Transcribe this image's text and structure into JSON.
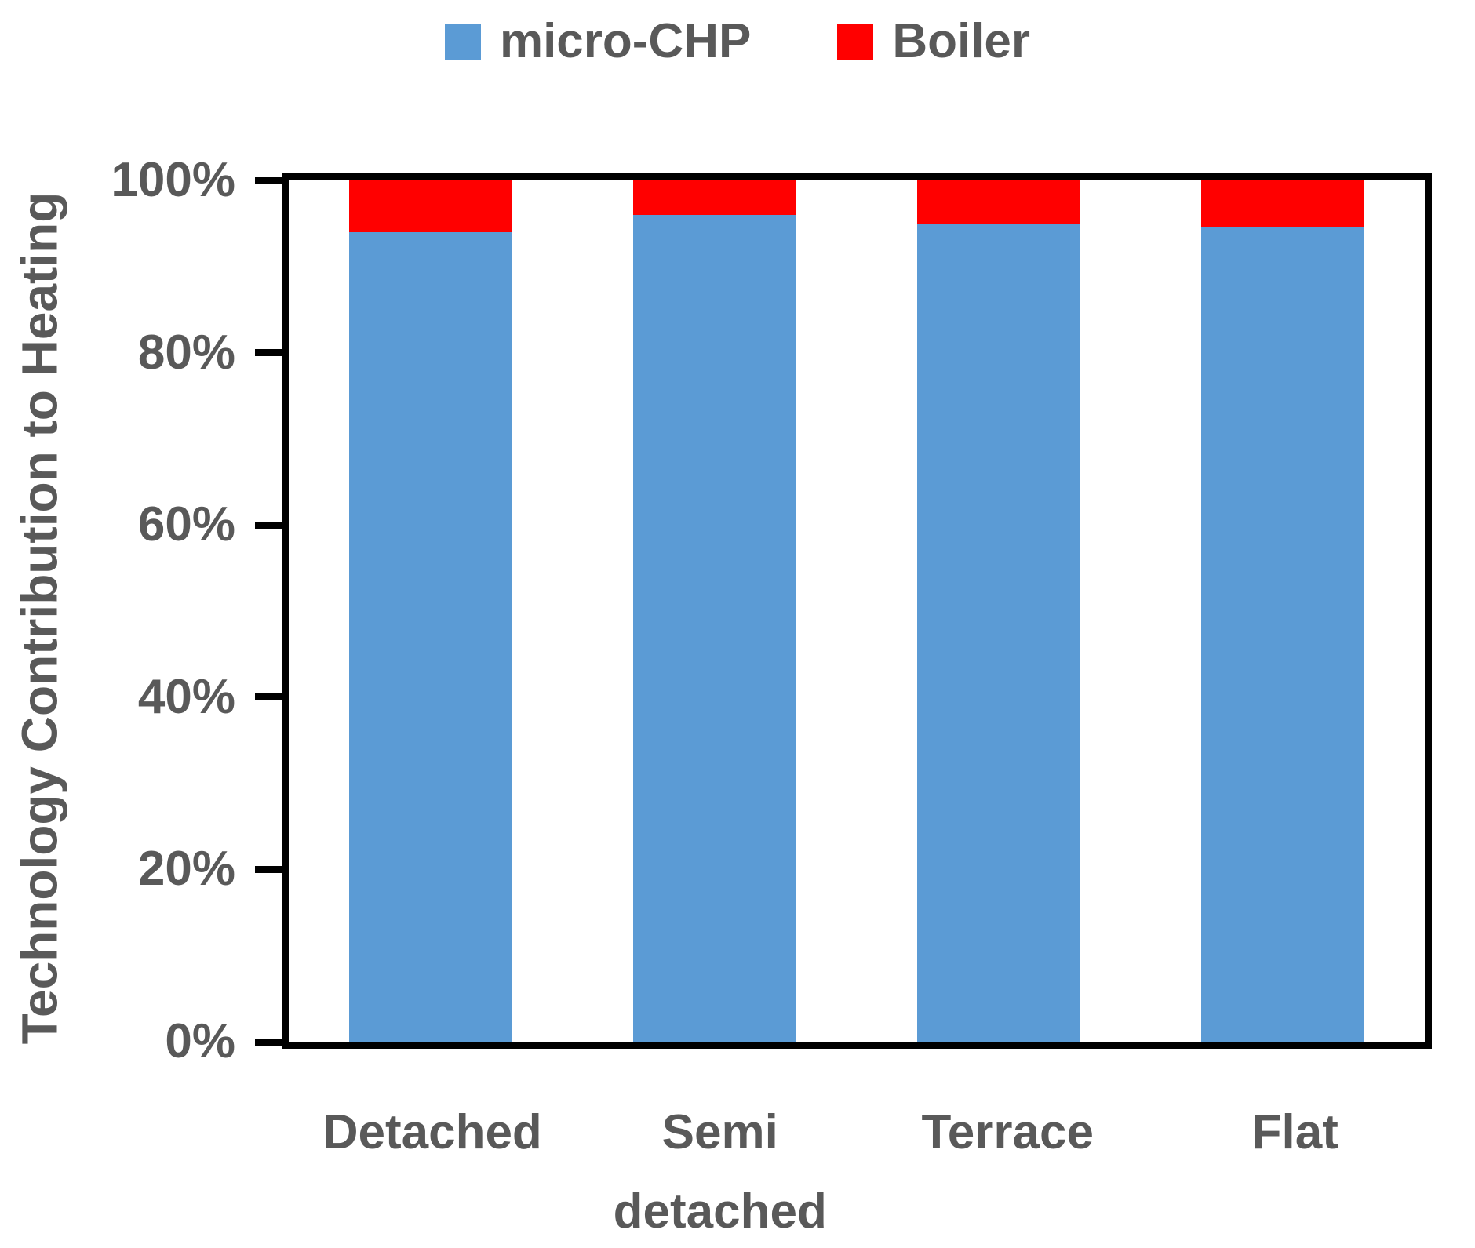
{
  "chart_data": {
    "type": "bar",
    "subtype": "stacked-100-percent",
    "title": "",
    "xlabel": "",
    "ylabel": "Technology Contribution to Heating",
    "categories": [
      "Detached",
      "Semi detached",
      "Terrace",
      "Flat"
    ],
    "series": [
      {
        "name": "micro-CHP",
        "color": "#5B9BD5",
        "values": [
          94,
          96,
          95,
          94.5
        ]
      },
      {
        "name": "Boiler",
        "color": "#FF0000",
        "values": [
          6,
          4,
          5,
          5.5
        ]
      }
    ],
    "ylim": [
      0,
      100
    ],
    "ytick_interval": 20,
    "ytick_labels": [
      "0%",
      "20%",
      "40%",
      "60%",
      "80%",
      "100%"
    ],
    "grid": false,
    "legend_position": "top"
  },
  "styles": {
    "text_color": "#595959",
    "axis_color": "#000000",
    "background": "#FFFFFF",
    "micro_chp_color": "#5B9BD5",
    "boiler_color": "#FF0000"
  }
}
